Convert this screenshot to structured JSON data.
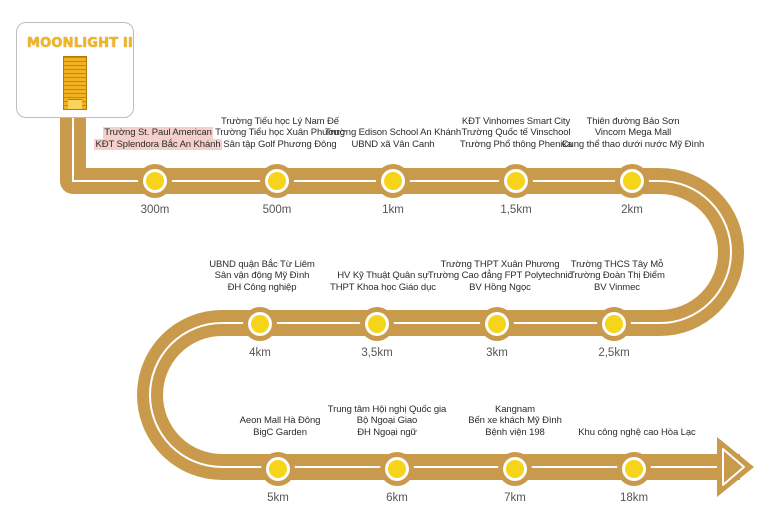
{
  "brand": {
    "logo_text": "MOONLIGHT II"
  },
  "colors": {
    "road": "#c99a4c",
    "stripe": "#ffffff",
    "marker": "#f6d419",
    "marker_ring": "#c99a4c"
  },
  "stops": [
    {
      "distance": "300m",
      "lines": [
        "Trường St. Paul American",
        "KĐT Splendora Bắc An Khánh"
      ],
      "highlight": true
    },
    {
      "distance": "500m",
      "lines": [
        "Trường Tiểu học Lý Nam Đế",
        "Trường Tiểu học Xuân Phương",
        "Sân tập Golf Phương Đông"
      ]
    },
    {
      "distance": "1km",
      "lines": [
        "Trường Edison School An Khánh",
        "UBND xã Vân Canh"
      ]
    },
    {
      "distance": "1,5km",
      "lines": [
        "KĐT Vinhomes Smart City",
        "Trường Quốc tế Vinschool",
        "Trường Phổ thông Phenika"
      ]
    },
    {
      "distance": "2km",
      "lines": [
        "Thiên đường Bảo Sơn",
        "Vincom Mega Mall",
        "Cung thể thao dưới nước Mỹ Đình"
      ]
    },
    {
      "distance": "2,5km",
      "lines": [
        "Trường THCS Tây Mỗ",
        "Trường Đoàn Thị Điểm",
        "BV Vinmec"
      ]
    },
    {
      "distance": "3km",
      "lines": [
        "Trường THPT Xuân Phương",
        "Trường Cao đẳng FPT Polytechnic",
        "BV Hồng Ngọc"
      ]
    },
    {
      "distance": "3,5km",
      "lines": [
        "HV Kỹ Thuật Quân sự",
        "THPT Khoa học Giáo dục"
      ]
    },
    {
      "distance": "4km",
      "lines": [
        "UBND quận Bắc Từ Liêm",
        "Sân vận động Mỹ Đình",
        "ĐH Công nghiệp"
      ]
    },
    {
      "distance": "5km",
      "lines": [
        "Aeon Mall Hà Đông",
        "BigC Garden"
      ]
    },
    {
      "distance": "6km",
      "lines": [
        "Trung tâm Hội nghị Quốc gia",
        "Bộ Ngoại Giao",
        "ĐH Ngoại ngữ"
      ]
    },
    {
      "distance": "7km",
      "lines": [
        "Kangnam",
        "Bến xe khách Mỹ Đình",
        "Bệnh viện 198"
      ]
    },
    {
      "distance": "18km",
      "lines": [
        "Khu công nghệ cao Hòa Lạc"
      ]
    }
  ]
}
